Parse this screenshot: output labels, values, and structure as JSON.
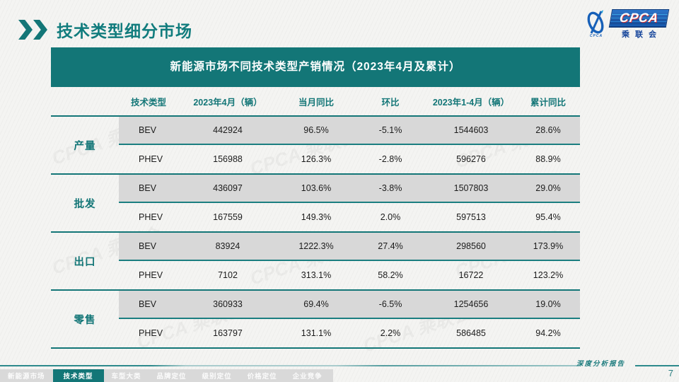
{
  "slide": {
    "title": "技术类型细分市场"
  },
  "logo": {
    "en": "CPCA",
    "cn": "乘联会",
    "caption": "CPCA",
    "blue": "#1760b8",
    "red": "#d62c2c"
  },
  "table": {
    "banner": "新能源市场不同技术类型产销情况（2023年4月及累计）",
    "columns": [
      "技术类型",
      "2023年4月（辆）",
      "当月同比",
      "环比",
      "2023年1-4月（辆）",
      "累计同比"
    ],
    "groups": [
      {
        "label": "产量",
        "rows": [
          {
            "type": "BEV",
            "values": [
              "442924",
              "96.5%",
              "-5.1%",
              "1544603",
              "28.6%"
            ]
          },
          {
            "type": "PHEV",
            "values": [
              "156988",
              "126.3%",
              "-2.8%",
              "596276",
              "88.9%"
            ]
          }
        ]
      },
      {
        "label": "批发",
        "rows": [
          {
            "type": "BEV",
            "values": [
              "436097",
              "103.6%",
              "-3.8%",
              "1507803",
              "29.0%"
            ]
          },
          {
            "type": "PHEV",
            "values": [
              "167559",
              "149.3%",
              "2.0%",
              "597513",
              "95.4%"
            ]
          }
        ]
      },
      {
        "label": "出口",
        "rows": [
          {
            "type": "BEV",
            "values": [
              "83924",
              "1222.3%",
              "27.4%",
              "298560",
              "173.9%"
            ]
          },
          {
            "type": "PHEV",
            "values": [
              "7102",
              "313.1%",
              "58.2%",
              "16722",
              "123.2%"
            ]
          }
        ]
      },
      {
        "label": "零售",
        "rows": [
          {
            "type": "BEV",
            "values": [
              "360933",
              "69.4%",
              "-6.5%",
              "1254656",
              "19.0%"
            ]
          },
          {
            "type": "PHEV",
            "values": [
              "163797",
              "131.1%",
              "2.2%",
              "586485",
              "94.2%"
            ]
          }
        ]
      }
    ]
  },
  "nav": {
    "tabs": [
      {
        "id": "new-energy-market",
        "label": "新能源市场",
        "active": false
      },
      {
        "id": "tech-type",
        "label": "技术类型",
        "active": true
      },
      {
        "id": "model-class",
        "label": "车型大类",
        "active": false
      },
      {
        "id": "brand-positioning",
        "label": "品牌定位",
        "active": false
      },
      {
        "id": "level-positioning",
        "label": "级别定位",
        "active": false
      },
      {
        "id": "price-positioning",
        "label": "价格定位",
        "active": false
      },
      {
        "id": "enterprise-competition",
        "label": "企业竞争",
        "active": false
      }
    ]
  },
  "footer": {
    "report_label": "深度分析报告",
    "page_number": "7"
  },
  "watermark": {
    "text": "CPCA 乘联会"
  },
  "colors": {
    "accent": "#137677",
    "row_gray": "#d8d8d8",
    "nav_gray": "#d9d9d9",
    "logo_blue": "#1760b8"
  }
}
